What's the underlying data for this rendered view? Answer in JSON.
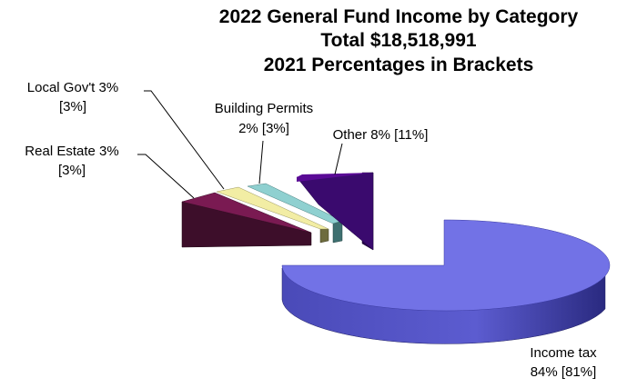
{
  "chart_data": {
    "type": "pie",
    "title": [
      "2022 General Fund Income by Category",
      "Total $18,518,991",
      "2021 Percentages in Brackets"
    ],
    "slices": [
      {
        "name": "Income tax",
        "value": 84,
        "prior_value": 81,
        "label_lines": [
          "Income tax",
          "84% [81%]"
        ],
        "color": "#7272e6"
      },
      {
        "name": "Real Estate",
        "value": 3,
        "prior_value": 3,
        "label_lines": [
          "Real Estate 3%",
          "[3%]"
        ],
        "color": "#7a1a52"
      },
      {
        "name": "Local Gov't",
        "value": 3,
        "prior_value": 3,
        "label_lines": [
          "Local Gov't 3%",
          "[3%]"
        ],
        "color": "#f2eda4"
      },
      {
        "name": "Building Permits",
        "value": 2,
        "prior_value": 3,
        "label_lines": [
          "Building Permits",
          "2% [3%]"
        ],
        "color": "#8fd0d0"
      },
      {
        "name": "Other",
        "value": 8,
        "prior_value": 11,
        "label_lines": [
          "Other 8% [11%]"
        ],
        "color": "#5a0a96"
      }
    ],
    "style": "3d-exploded-pie",
    "legend": "none"
  }
}
